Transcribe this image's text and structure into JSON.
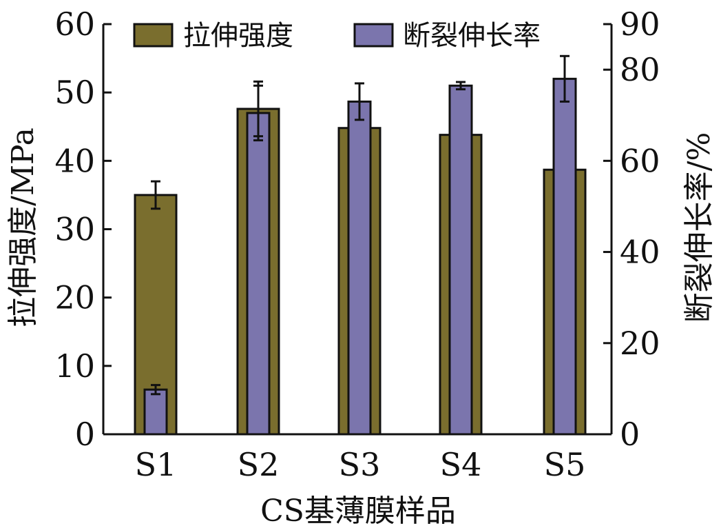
{
  "chart_data": {
    "type": "bar",
    "categories": [
      "S1",
      "S2",
      "S3",
      "S4",
      "S5"
    ],
    "xlabel": "CS基薄膜样品",
    "ylabel_left": "拉伸强度/MPa",
    "ylabel_right": "断裂伸长率/%",
    "ylim_left": [
      0,
      60
    ],
    "ylim_right": [
      0,
      90
    ],
    "yticks_left": [
      "0",
      "10",
      "20",
      "30",
      "40",
      "50",
      "60"
    ],
    "yticks_right": [
      "0",
      "20",
      "40",
      "60",
      "80",
      "90"
    ],
    "grid": false,
    "legend_position": "top",
    "series": [
      {
        "name": "拉伸强度",
        "axis": "left",
        "color": "#7a6e2e",
        "values": [
          35.0,
          47.6,
          44.8,
          43.8,
          38.7
        ],
        "errors": [
          2.0,
          4.0,
          null,
          null,
          null
        ]
      },
      {
        "name": "断裂伸长率",
        "axis": "right",
        "color": "#7b75ad",
        "values": [
          9.8,
          70.5,
          73.0,
          76.5,
          78.0
        ],
        "errors": [
          1.0,
          6.0,
          4.0,
          0.8,
          5.0
        ]
      }
    ]
  }
}
